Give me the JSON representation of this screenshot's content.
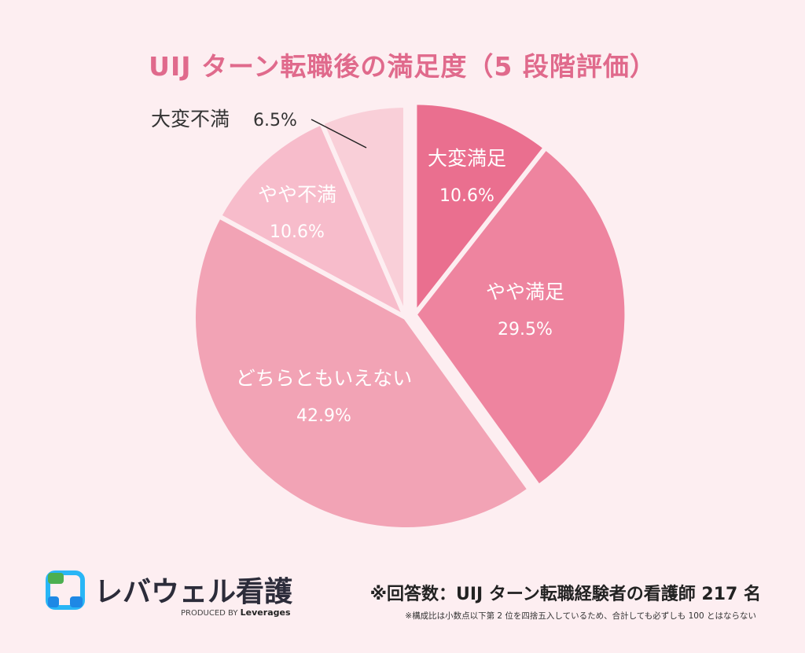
{
  "chart_data": {
    "type": "pie",
    "title": "UIJ ターン転職後の満足度（5 段階評価）",
    "slices": [
      {
        "label": "大変満足",
        "value_label": "10.6%",
        "value": 10.6,
        "color": "#ea6f8f",
        "exploded": true
      },
      {
        "label": "やや満足",
        "value_label": "29.5%",
        "value": 29.5,
        "color": "#ee849f",
        "exploded": true
      },
      {
        "label": "どちらともいえない",
        "value_label": "42.9%",
        "value": 42.9,
        "color": "#f2a3b5",
        "exploded": false
      },
      {
        "label": "やや不満",
        "value_label": "10.6%",
        "value": 10.6,
        "color": "#f7bccb",
        "exploded": false
      },
      {
        "label": "大変不満",
        "value_label": "6.5%",
        "value": 6.5,
        "color": "#f9cfd8",
        "exploded": false
      }
    ],
    "start": "12 o'clock",
    "direction": "clockwise"
  },
  "brand": {
    "name": "レバウェル看護",
    "produced_by": "PRODUCED BY",
    "company": "Leverages",
    "colors": {
      "blue": "#1e88e5",
      "green": "#4caf50",
      "cyan": "#29b6f6",
      "dark": "#2c2c3a"
    }
  },
  "notes": {
    "respondents": "※回答数：UIJ ターン転職経験者の看護師 217 名",
    "rounding": "※構成比は小数点以下第 2 位を四捨五入しているため、合計しても必ずしも 100 とはならない"
  },
  "colors": {
    "background": "#fdeef1",
    "title": "#e06a8c"
  }
}
